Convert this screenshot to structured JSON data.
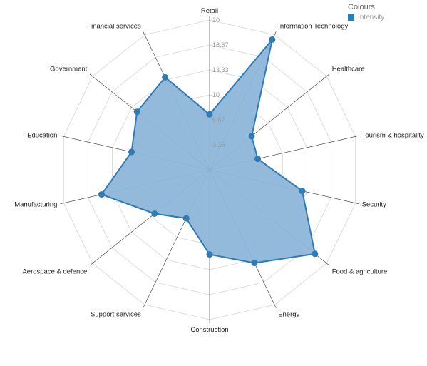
{
  "colors": {
    "accent": "#2e7bb6",
    "fill": "#8db6d9",
    "grid": "#dddddd",
    "axis": "#333333"
  },
  "legend": {
    "title": "Colours",
    "item": "Intensity",
    "placement": "top-right"
  },
  "chart_data": {
    "type": "radar",
    "title": "",
    "categories": [
      "Retail",
      "Information Technology",
      "Healthcare",
      "Tourism & hospitality",
      "Security",
      "Food & agriculture",
      "Energy",
      "Construction",
      "Support services",
      "Aerospace & defence",
      "Manufacturing",
      "Education",
      "Government",
      "Financial services"
    ],
    "series": [
      {
        "name": "Intensity",
        "values": [
          7.4,
          19.3,
          7.2,
          6.6,
          12.7,
          18.0,
          13.8,
          11.3,
          7.2,
          9.4,
          14.8,
          10.7,
          12.4,
          13.7
        ]
      }
    ],
    "rlim": [
      0,
      20
    ],
    "ticks": [
      "3.33",
      "6.67",
      "10",
      "13.33",
      "16.67",
      "20"
    ],
    "grid": true
  }
}
